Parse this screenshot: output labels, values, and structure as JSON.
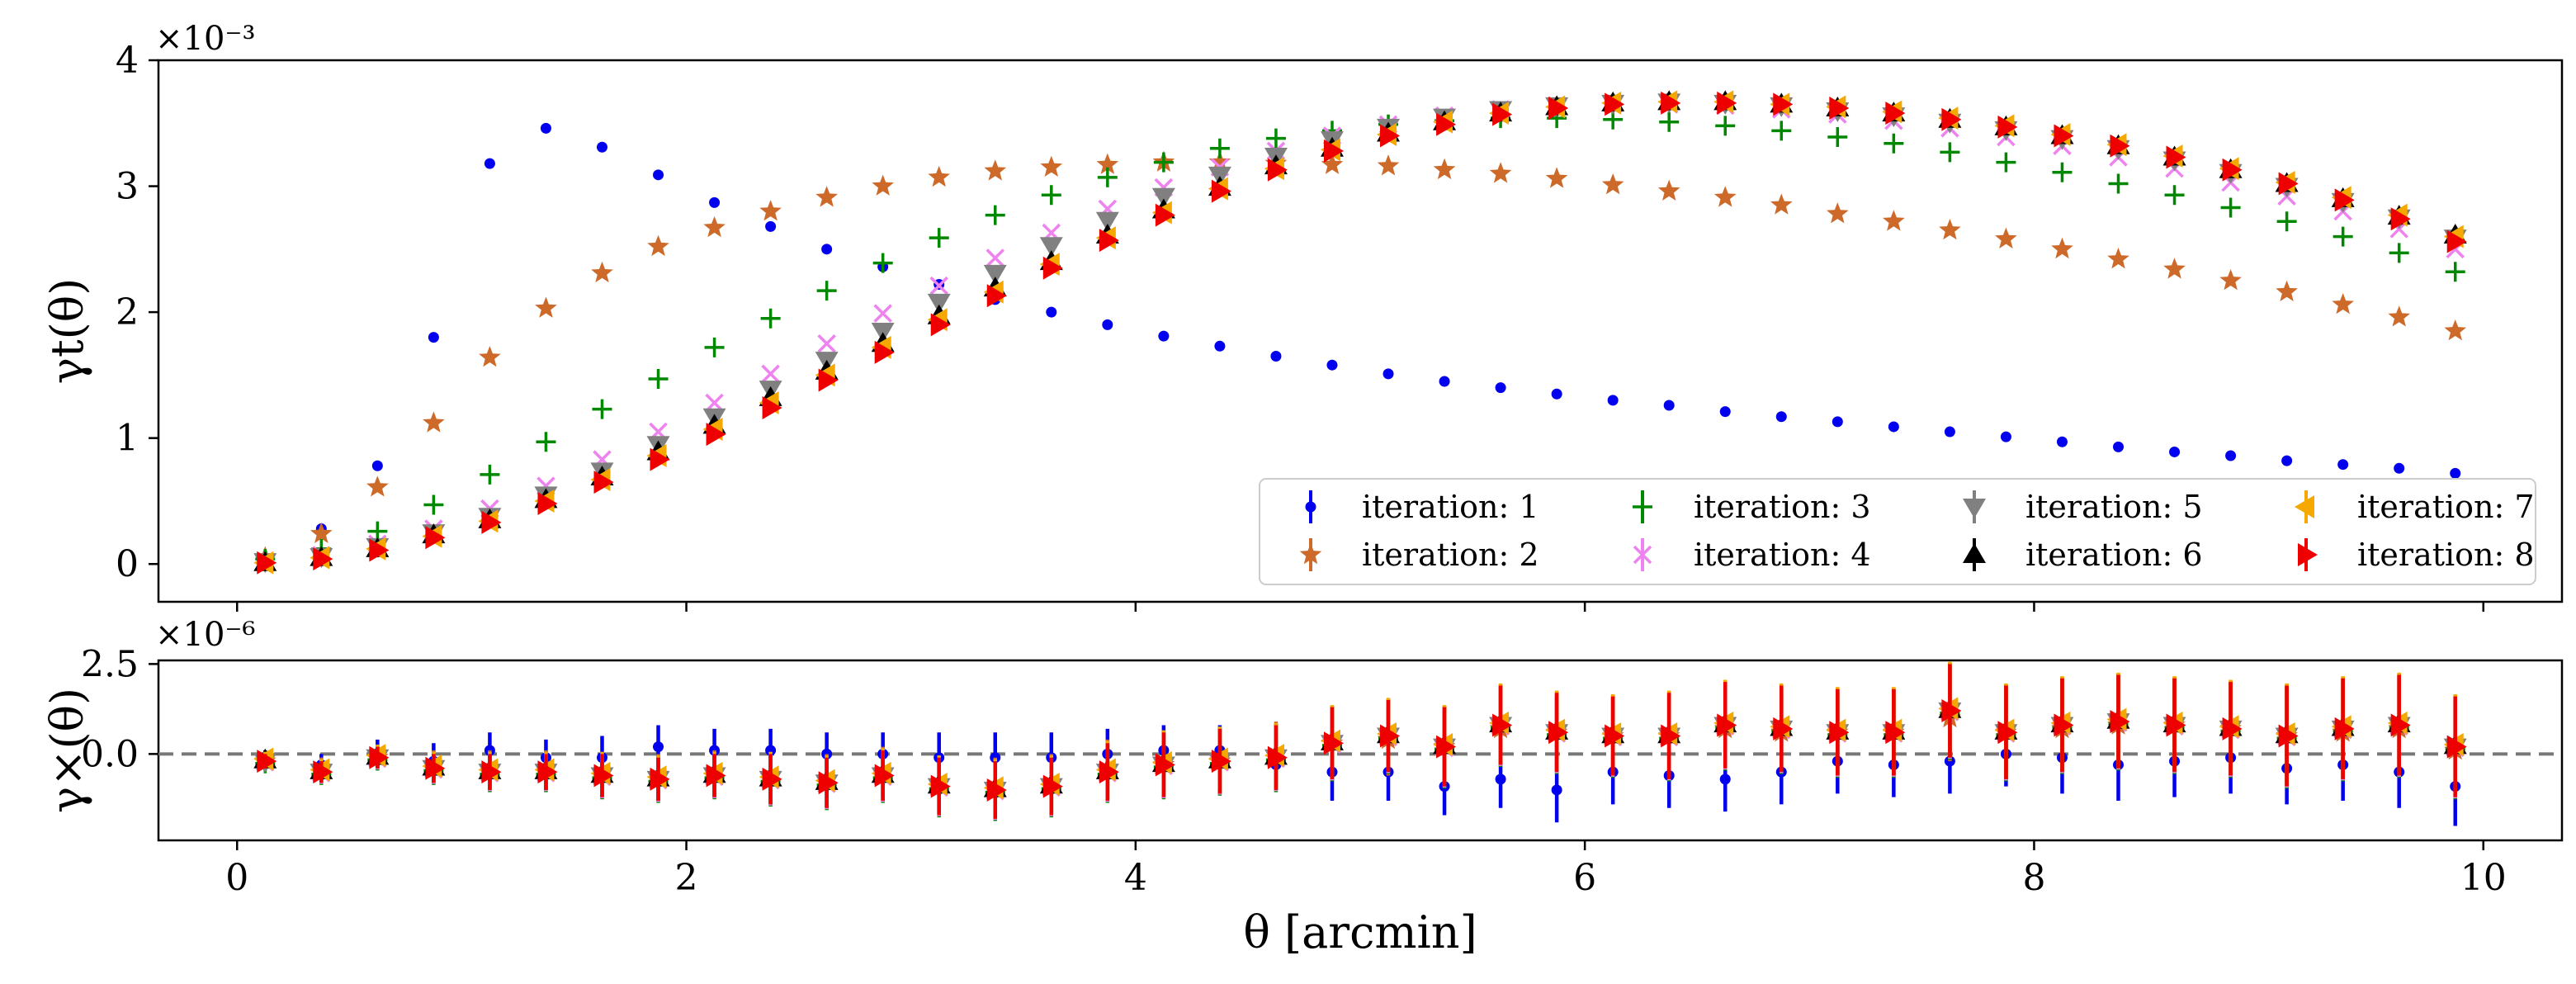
{
  "chart_data": [
    {
      "panel": "top",
      "type": "scatter",
      "ylabel": "γt(θ)",
      "y_offset_label": "×10⁻³",
      "xlim": [
        -0.35,
        10.35
      ],
      "ylim": [
        -0.3,
        4.0
      ],
      "xticks": [
        0,
        2,
        4,
        6,
        8,
        10
      ],
      "yticks": [
        0,
        1,
        2,
        3,
        4
      ],
      "ytick_labels": [
        "0",
        "1",
        "2",
        "3",
        "4"
      ],
      "x": [
        0.125,
        0.375,
        0.625,
        0.875,
        1.125,
        1.375,
        1.625,
        1.875,
        2.125,
        2.375,
        2.625,
        2.875,
        3.125,
        3.375,
        3.625,
        3.875,
        4.125,
        4.375,
        4.625,
        4.875,
        5.125,
        5.375,
        5.625,
        5.875,
        6.125,
        6.375,
        6.625,
        6.875,
        7.125,
        7.375,
        7.625,
        7.875,
        8.125,
        8.375,
        8.625,
        8.875,
        9.125,
        9.375,
        9.625,
        9.875
      ],
      "series": [
        {
          "name": "iteration: 1",
          "marker": "dot",
          "color": "#0000ee",
          "values": [
            0.05,
            0.28,
            0.78,
            1.8,
            3.18,
            3.46,
            3.31,
            3.09,
            2.87,
            2.68,
            2.5,
            2.36,
            2.22,
            2.1,
            2.0,
            1.9,
            1.81,
            1.73,
            1.65,
            1.58,
            1.51,
            1.45,
            1.4,
            1.35,
            1.3,
            1.26,
            1.21,
            1.17,
            1.13,
            1.09,
            1.05,
            1.01,
            0.97,
            0.93,
            0.89,
            0.86,
            0.82,
            0.79,
            0.76,
            0.72
          ]
        },
        {
          "name": "iteration: 2",
          "marker": "star",
          "color": "#cd6a2a",
          "values": [
            0.05,
            0.24,
            0.61,
            1.12,
            1.64,
            2.03,
            2.31,
            2.52,
            2.67,
            2.8,
            2.91,
            3.0,
            3.07,
            3.12,
            3.15,
            3.17,
            3.19,
            3.19,
            3.18,
            3.17,
            3.16,
            3.13,
            3.1,
            3.06,
            3.01,
            2.96,
            2.91,
            2.85,
            2.78,
            2.72,
            2.65,
            2.58,
            2.5,
            2.42,
            2.34,
            2.25,
            2.16,
            2.06,
            1.96,
            1.85
          ]
        },
        {
          "name": "iteration: 3",
          "marker": "plus",
          "color": "#008800",
          "values": [
            0.04,
            0.12,
            0.26,
            0.47,
            0.71,
            0.97,
            1.23,
            1.47,
            1.72,
            1.95,
            2.17,
            2.39,
            2.59,
            2.77,
            2.93,
            3.07,
            3.19,
            3.3,
            3.38,
            3.44,
            3.49,
            3.52,
            3.54,
            3.54,
            3.53,
            3.51,
            3.48,
            3.44,
            3.39,
            3.34,
            3.27,
            3.19,
            3.11,
            3.02,
            2.93,
            2.83,
            2.72,
            2.6,
            2.47,
            2.32
          ]
        },
        {
          "name": "iteration: 4",
          "marker": "x",
          "color": "#ee82ee",
          "values": [
            0.02,
            0.07,
            0.16,
            0.28,
            0.44,
            0.62,
            0.83,
            1.05,
            1.28,
            1.51,
            1.75,
            1.99,
            2.21,
            2.43,
            2.63,
            2.82,
            2.99,
            3.15,
            3.28,
            3.4,
            3.49,
            3.56,
            3.61,
            3.64,
            3.65,
            3.65,
            3.64,
            3.61,
            3.57,
            3.52,
            3.46,
            3.39,
            3.32,
            3.23,
            3.14,
            3.03,
            2.92,
            2.8,
            2.66,
            2.5
          ]
        },
        {
          "name": "iteration: 5",
          "marker": "tri-down",
          "color": "#808080",
          "values": [
            0.02,
            0.06,
            0.14,
            0.25,
            0.38,
            0.55,
            0.74,
            0.95,
            1.17,
            1.39,
            1.62,
            1.85,
            2.08,
            2.31,
            2.53,
            2.73,
            2.92,
            3.09,
            3.24,
            3.37,
            3.47,
            3.55,
            3.61,
            3.64,
            3.66,
            3.67,
            3.66,
            3.64,
            3.6,
            3.56,
            3.51,
            3.45,
            3.38,
            3.3,
            3.21,
            3.11,
            3.0,
            2.88,
            2.75,
            2.59
          ]
        },
        {
          "name": "iteration: 6",
          "marker": "tri-up",
          "color": "#000000",
          "values": [
            0.01,
            0.05,
            0.12,
            0.23,
            0.35,
            0.51,
            0.69,
            0.89,
            1.1,
            1.32,
            1.53,
            1.75,
            1.97,
            2.19,
            2.4,
            2.61,
            2.81,
            2.99,
            3.16,
            3.3,
            3.42,
            3.51,
            3.58,
            3.63,
            3.66,
            3.67,
            3.67,
            3.65,
            3.62,
            3.58,
            3.53,
            3.47,
            3.4,
            3.32,
            3.23,
            3.13,
            3.02,
            2.9,
            2.76,
            2.61
          ]
        },
        {
          "name": "iteration: 7",
          "marker": "tri-left",
          "color": "#f5a800",
          "values": [
            0.01,
            0.05,
            0.12,
            0.22,
            0.34,
            0.5,
            0.67,
            0.86,
            1.07,
            1.28,
            1.5,
            1.72,
            1.94,
            2.16,
            2.38,
            2.59,
            2.79,
            2.98,
            3.14,
            3.29,
            3.41,
            3.51,
            3.58,
            3.63,
            3.66,
            3.67,
            3.67,
            3.65,
            3.63,
            3.59,
            3.54,
            3.48,
            3.41,
            3.33,
            3.24,
            3.14,
            3.03,
            2.91,
            2.77,
            2.6
          ]
        },
        {
          "name": "iteration: 8",
          "marker": "tri-right",
          "color": "#ee0000",
          "values": [
            0.01,
            0.04,
            0.11,
            0.21,
            0.33,
            0.48,
            0.65,
            0.83,
            1.03,
            1.24,
            1.46,
            1.68,
            1.9,
            2.13,
            2.35,
            2.57,
            2.77,
            2.96,
            3.13,
            3.28,
            3.4,
            3.49,
            3.57,
            3.62,
            3.65,
            3.66,
            3.66,
            3.65,
            3.62,
            3.58,
            3.53,
            3.47,
            3.4,
            3.32,
            3.23,
            3.13,
            3.02,
            2.89,
            2.74,
            2.56
          ]
        }
      ],
      "legend": {
        "location": "lower-right",
        "columns": 4,
        "order": [
          "iteration: 1",
          "iteration: 2",
          "iteration: 3",
          "iteration: 4",
          "iteration: 5",
          "iteration: 6",
          "iteration: 7",
          "iteration: 8"
        ]
      }
    },
    {
      "panel": "bottom",
      "type": "scatter",
      "xlabel": "θ [arcmin]",
      "ylabel": "γ×(θ)",
      "y_offset_label": "×10⁻⁶",
      "xlim": [
        -0.35,
        10.35
      ],
      "ylim": [
        -2.4,
        2.6
      ],
      "xticks": [
        0,
        2,
        4,
        6,
        8,
        10
      ],
      "xtick_labels": [
        "0",
        "2",
        "4",
        "6",
        "8",
        "10"
      ],
      "yticks": [
        0.0,
        2.5
      ],
      "ytick_labels": [
        "0.0",
        "2.5"
      ],
      "reference_line": {
        "y": 0,
        "style": "dashed",
        "color": "#777777"
      },
      "x": [
        0.125,
        0.375,
        0.625,
        0.875,
        1.125,
        1.375,
        1.625,
        1.875,
        2.125,
        2.375,
        2.625,
        2.875,
        3.125,
        3.375,
        3.625,
        3.875,
        4.125,
        4.375,
        4.625,
        4.875,
        5.125,
        5.375,
        5.625,
        5.875,
        6.125,
        6.375,
        6.625,
        6.875,
        7.125,
        7.375,
        7.625,
        7.875,
        8.125,
        8.375,
        8.625,
        8.875,
        9.125,
        9.375,
        9.625,
        9.875
      ],
      "series": [
        {
          "name": "iteration: 1",
          "color": "#0000ee",
          "values": [
            -0.1,
            -0.3,
            0.0,
            -0.2,
            0.1,
            -0.1,
            -0.1,
            0.2,
            0.1,
            0.1,
            0.0,
            0.0,
            -0.1,
            -0.1,
            -0.1,
            0.0,
            0.1,
            0.1,
            -0.3,
            -0.5,
            -0.5,
            -0.9,
            -0.7,
            -1.0,
            -0.5,
            -0.6,
            -0.7,
            -0.5,
            -0.2,
            -0.3,
            -0.2,
            0.0,
            -0.1,
            -0.3,
            -0.2,
            -0.1,
            -0.4,
            -0.3,
            -0.5,
            -0.9
          ],
          "errors": [
            0.2,
            0.3,
            0.4,
            0.5,
            0.5,
            0.5,
            0.6,
            0.6,
            0.6,
            0.6,
            0.6,
            0.6,
            0.7,
            0.7,
            0.7,
            0.7,
            0.7,
            0.7,
            0.7,
            0.8,
            0.8,
            0.8,
            0.8,
            0.9,
            0.9,
            0.9,
            0.9,
            0.9,
            0.9,
            0.9,
            0.9,
            0.9,
            1.0,
            1.0,
            1.0,
            1.0,
            1.0,
            1.0,
            1.0,
            1.1
          ]
        },
        {
          "name": "iteration: 2",
          "color": "#cd6a2a",
          "values": [
            -0.2,
            -0.4,
            -0.1,
            -0.3,
            -0.4,
            -0.4,
            -0.5,
            -0.6,
            -0.5,
            -0.6,
            -0.7,
            -0.5,
            -0.8,
            -0.9,
            -0.8,
            -0.4,
            -0.3,
            -0.2,
            0.0,
            0.3,
            0.4,
            0.2,
            0.7,
            0.6,
            0.5,
            0.5,
            0.7,
            0.6,
            0.6,
            0.6,
            1.0,
            0.6,
            0.7,
            0.8,
            0.8,
            0.7,
            0.5,
            0.6,
            0.7,
            0.1
          ],
          "errors": [
            0.2,
            0.3,
            0.3,
            0.4,
            0.5,
            0.5,
            0.5,
            0.6,
            0.6,
            0.6,
            0.7,
            0.7,
            0.7,
            0.8,
            0.8,
            0.8,
            0.8,
            0.9,
            0.9,
            0.9,
            1.0,
            1.0,
            1.0,
            1.0,
            1.1,
            1.1,
            1.1,
            1.1,
            1.1,
            1.2,
            1.2,
            1.2,
            1.2,
            1.2,
            1.3,
            1.3,
            1.3,
            1.3,
            1.3,
            1.3
          ]
        },
        {
          "name": "iteration: 8",
          "color": "#ee0000",
          "values": [
            -0.2,
            -0.5,
            -0.1,
            -0.4,
            -0.5,
            -0.5,
            -0.6,
            -0.7,
            -0.6,
            -0.7,
            -0.8,
            -0.6,
            -0.9,
            -1.0,
            -0.9,
            -0.5,
            -0.3,
            -0.2,
            -0.1,
            0.3,
            0.5,
            0.2,
            0.8,
            0.6,
            0.5,
            0.5,
            0.8,
            0.7,
            0.6,
            0.6,
            1.2,
            0.6,
            0.8,
            0.9,
            0.8,
            0.7,
            0.5,
            0.7,
            0.8,
            0.2
          ],
          "errors": [
            0.2,
            0.3,
            0.3,
            0.4,
            0.5,
            0.5,
            0.6,
            0.6,
            0.6,
            0.7,
            0.7,
            0.7,
            0.8,
            0.8,
            0.8,
            0.8,
            0.9,
            0.9,
            0.9,
            1.0,
            1.0,
            1.1,
            1.1,
            1.1,
            1.1,
            1.2,
            1.2,
            1.2,
            1.2,
            1.2,
            1.3,
            1.3,
            1.3,
            1.3,
            1.3,
            1.3,
            1.4,
            1.4,
            1.4,
            1.4
          ]
        }
      ],
      "overlay_series": [
        "iteration: 3",
        "iteration: 4",
        "iteration: 5",
        "iteration: 6",
        "iteration: 7"
      ],
      "overlay_follow": "iteration: 8"
    }
  ]
}
